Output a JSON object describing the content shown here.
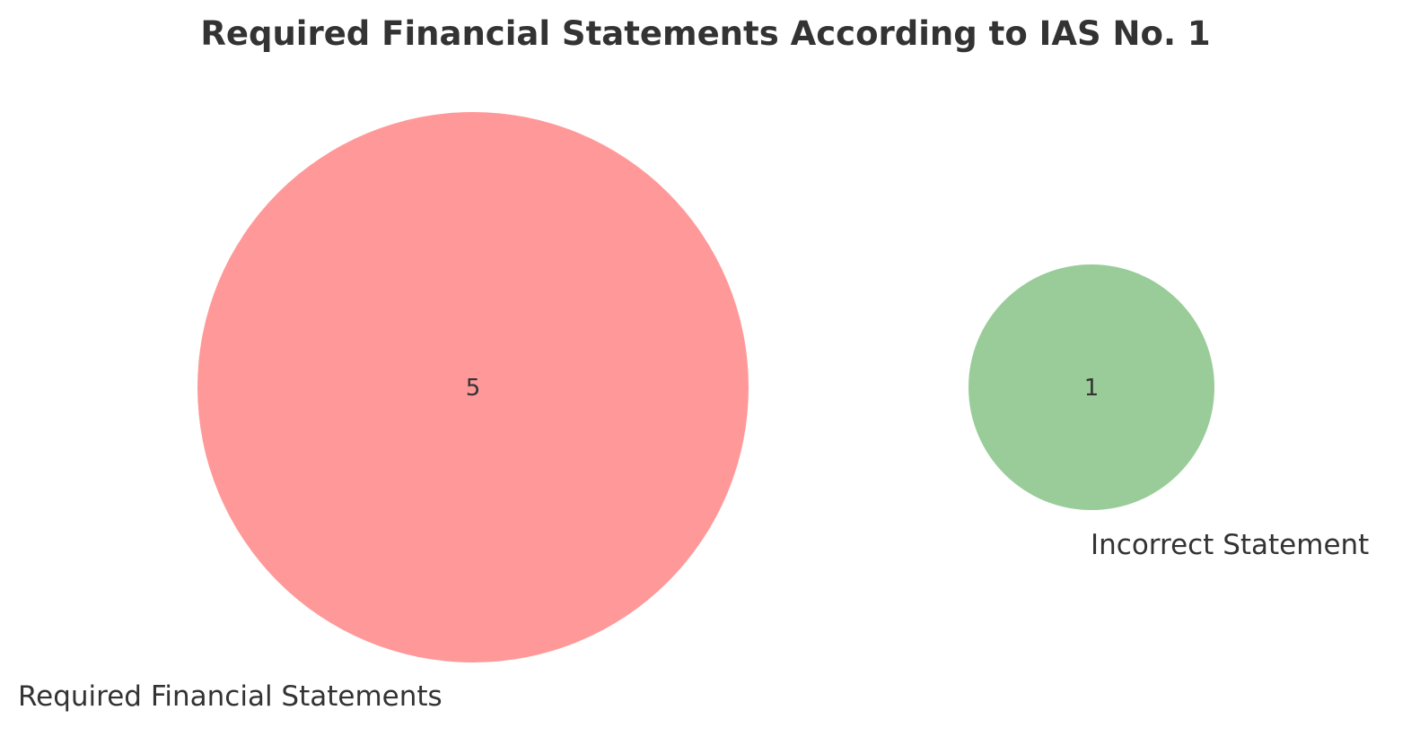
{
  "title": "Required Financial Statements According to IAS No. 1",
  "sets": [
    {
      "label": "Required Financial Statements",
      "count": "5",
      "color": "#ff9999"
    },
    {
      "label": "Incorrect Statement",
      "count": "1",
      "color": "#99cc99"
    }
  ]
}
